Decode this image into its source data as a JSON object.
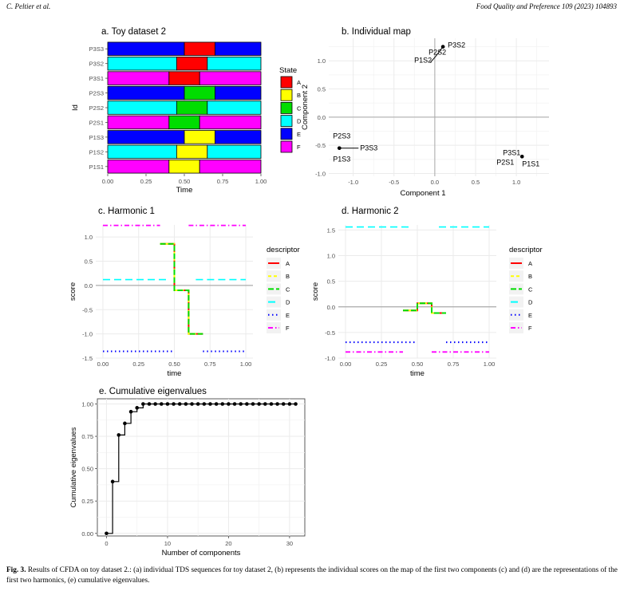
{
  "header": {
    "author": "C. Peltier et al.",
    "journal": "Food Quality and Preference 109 (2023) 104893"
  },
  "caption": {
    "label": "Fig. 3.",
    "text": "Results of CFDA on toy dataset 2.: (a) individual TDS sequences for toy dataset 2, (b) represents the individual scores on the map of the first two components (c) and (d) are the representations of the first two harmonics, (e) cumulative eigenvalues."
  },
  "colors": {
    "A": "#ff0000",
    "B": "#ffff00",
    "C": "#00dd00",
    "D": "#00ffff",
    "E": "#0000ff",
    "F": "#ff00ff"
  },
  "chart_data": [
    {
      "id": "a",
      "type": "bar",
      "title": "a. Toy dataset 2",
      "xlabel": "Time",
      "ylabel": "Id",
      "xlim": [
        0,
        1
      ],
      "xticks": [
        "0.00",
        "0.25",
        "0.50",
        "0.75",
        "1.00"
      ],
      "legend_title": "State",
      "legend": [
        "A",
        "B",
        "C",
        "D",
        "E",
        "F"
      ],
      "rows": [
        {
          "id": "P3S3",
          "segments": [
            [
              "E",
              0,
              0.5
            ],
            [
              "A",
              0.5,
              0.7
            ],
            [
              "E",
              0.7,
              1
            ]
          ]
        },
        {
          "id": "P3S2",
          "segments": [
            [
              "D",
              0,
              0.45
            ],
            [
              "A",
              0.45,
              0.65
            ],
            [
              "D",
              0.65,
              1
            ]
          ]
        },
        {
          "id": "P3S1",
          "segments": [
            [
              "F",
              0,
              0.4
            ],
            [
              "A",
              0.4,
              0.6
            ],
            [
              "F",
              0.6,
              1
            ]
          ]
        },
        {
          "id": "P2S3",
          "segments": [
            [
              "E",
              0,
              0.5
            ],
            [
              "C",
              0.5,
              0.7
            ],
            [
              "E",
              0.7,
              1
            ]
          ]
        },
        {
          "id": "P2S2",
          "segments": [
            [
              "D",
              0,
              0.45
            ],
            [
              "C",
              0.45,
              0.65
            ],
            [
              "D",
              0.65,
              1
            ]
          ]
        },
        {
          "id": "P2S1",
          "segments": [
            [
              "F",
              0,
              0.4
            ],
            [
              "C",
              0.4,
              0.6
            ],
            [
              "F",
              0.6,
              1
            ]
          ]
        },
        {
          "id": "P1S3",
          "segments": [
            [
              "E",
              0,
              0.5
            ],
            [
              "B",
              0.5,
              0.7
            ],
            [
              "E",
              0.7,
              1
            ]
          ]
        },
        {
          "id": "P1S2",
          "segments": [
            [
              "D",
              0,
              0.45
            ],
            [
              "B",
              0.45,
              0.65
            ],
            [
              "D",
              0.65,
              1
            ]
          ]
        },
        {
          "id": "P1S1",
          "segments": [
            [
              "F",
              0,
              0.4
            ],
            [
              "B",
              0.4,
              0.6
            ],
            [
              "F",
              0.6,
              1
            ]
          ]
        }
      ]
    },
    {
      "id": "b",
      "type": "scatter",
      "title": "b. Individual map",
      "xlabel": "Component 1",
      "ylabel": "Component 2",
      "xlim": [
        -1.3,
        1.4
      ],
      "ylim": [
        -1.05,
        1.4
      ],
      "xticks": [
        [
          "-1.0",
          -1
        ],
        [
          "-0.5",
          -0.5
        ],
        [
          "0.0",
          0
        ],
        [
          "0.5",
          0.5
        ],
        [
          "1.0",
          1
        ]
      ],
      "yticks": [
        [
          "1.0",
          1
        ],
        [
          "0.5",
          0.5
        ],
        [
          "0.0",
          0
        ],
        [
          "-0.5",
          -0.5
        ],
        [
          "-1.0",
          -1
        ]
      ],
      "points": [
        {
          "label": "P3S2",
          "x": 0.1,
          "y": 1.25
        },
        {
          "label": "P2S2",
          "x": 0.1,
          "y": 1.25
        },
        {
          "label": "P1S2",
          "x": 0.1,
          "y": 1.25
        },
        {
          "label": "P2S3",
          "x": -1.17,
          "y": -0.55
        },
        {
          "label": "P3S3",
          "x": -1.17,
          "y": -0.55
        },
        {
          "label": "P1S3",
          "x": -1.17,
          "y": -0.55
        },
        {
          "label": "P3S1",
          "x": 1.07,
          "y": -0.7
        },
        {
          "label": "P2S1",
          "x": 1.07,
          "y": -0.7
        },
        {
          "label": "P1S1",
          "x": 1.07,
          "y": -0.7
        }
      ]
    },
    {
      "id": "c",
      "type": "line",
      "title": "c. Harmonic 1",
      "xlabel": "time",
      "ylabel": "score",
      "xlim": [
        -0.05,
        1.05
      ],
      "ylim": [
        -1.5,
        1.25
      ],
      "xticks": [
        [
          "0.00",
          0
        ],
        [
          "0.25",
          0.25
        ],
        [
          "0.50",
          0.5
        ],
        [
          "0.75",
          0.75
        ],
        [
          "1.00",
          1
        ]
      ],
      "yticks": [
        [
          "1.0",
          1
        ],
        [
          "0.5",
          0.5
        ],
        [
          "0.0",
          0
        ],
        [
          "-0.5",
          -0.5
        ],
        [
          "-1.0",
          -1
        ],
        [
          "-1.5",
          -1.5
        ]
      ],
      "legend_title": "descriptor",
      "legend": [
        "A",
        "B",
        "C",
        "D",
        "E",
        "F"
      ],
      "series": [
        {
          "name": "A",
          "points": [
            [
              0.4,
              0.86
            ],
            [
              0.5,
              0.86
            ],
            [
              0.5,
              -0.1
            ],
            [
              0.6,
              -0.1
            ],
            [
              0.6,
              -1.0
            ],
            [
              0.7,
              -1.0
            ]
          ]
        },
        {
          "name": "B",
          "points": [
            [
              0.4,
              0.86
            ],
            [
              0.5,
              0.86
            ],
            [
              0.5,
              -0.1
            ],
            [
              0.6,
              -0.1
            ],
            [
              0.6,
              -1.0
            ],
            [
              0.7,
              -1.0
            ]
          ]
        },
        {
          "name": "C",
          "points": [
            [
              0.4,
              0.86
            ],
            [
              0.5,
              0.86
            ],
            [
              0.5,
              -0.1
            ],
            [
              0.6,
              -0.1
            ],
            [
              0.6,
              -1.0
            ],
            [
              0.7,
              -1.0
            ]
          ]
        },
        {
          "name": "D",
          "segments": [
            [
              [
                0,
                0.12
              ],
              [
                0.45,
                0.12
              ]
            ],
            [
              [
                0.65,
                0.12
              ],
              [
                1,
                0.12
              ]
            ]
          ]
        },
        {
          "name": "E",
          "segments": [
            [
              [
                0,
                -1.36
              ],
              [
                0.5,
                -1.36
              ]
            ],
            [
              [
                0.7,
                -1.36
              ],
              [
                1,
                -1.36
              ]
            ]
          ]
        },
        {
          "name": "F",
          "segments": [
            [
              [
                0,
                1.24
              ],
              [
                0.4,
                1.24
              ]
            ],
            [
              [
                0.6,
                1.24
              ],
              [
                1,
                1.24
              ]
            ]
          ]
        }
      ]
    },
    {
      "id": "d",
      "type": "line",
      "title": "d. Harmonic 2",
      "xlabel": "time",
      "ylabel": "score",
      "xlim": [
        -0.05,
        1.05
      ],
      "ylim": [
        -1.0,
        1.6
      ],
      "xticks": [
        [
          "0.00",
          0
        ],
        [
          "0.25",
          0.25
        ],
        [
          "0.50",
          0.5
        ],
        [
          "0.75",
          0.75
        ],
        [
          "1.00",
          1
        ]
      ],
      "yticks": [
        [
          "1.5",
          1.5
        ],
        [
          "1.0",
          1
        ],
        [
          "0.5",
          0.5
        ],
        [
          "0.0",
          0
        ],
        [
          "-0.5",
          -0.5
        ],
        [
          "-1.0",
          -1
        ]
      ],
      "legend_title": "descriptor",
      "legend": [
        "A",
        "B",
        "C",
        "D",
        "E",
        "F"
      ],
      "series": [
        {
          "name": "A",
          "points": [
            [
              0.4,
              -0.07
            ],
            [
              0.5,
              -0.07
            ],
            [
              0.5,
              0.07
            ],
            [
              0.6,
              0.07
            ],
            [
              0.6,
              -0.12
            ],
            [
              0.7,
              -0.12
            ]
          ]
        },
        {
          "name": "B",
          "points": [
            [
              0.4,
              -0.07
            ],
            [
              0.5,
              -0.07
            ],
            [
              0.5,
              0.07
            ],
            [
              0.6,
              0.07
            ],
            [
              0.6,
              -0.12
            ],
            [
              0.7,
              -0.12
            ]
          ]
        },
        {
          "name": "C",
          "points": [
            [
              0.4,
              -0.07
            ],
            [
              0.5,
              -0.07
            ],
            [
              0.5,
              0.07
            ],
            [
              0.6,
              0.07
            ],
            [
              0.6,
              -0.12
            ],
            [
              0.7,
              -0.12
            ]
          ]
        },
        {
          "name": "D",
          "segments": [
            [
              [
                0,
                1.56
              ],
              [
                0.45,
                1.56
              ]
            ],
            [
              [
                0.65,
                1.56
              ],
              [
                1,
                1.56
              ]
            ]
          ]
        },
        {
          "name": "E",
          "segments": [
            [
              [
                0,
                -0.69
              ],
              [
                0.5,
                -0.69
              ]
            ],
            [
              [
                0.7,
                -0.69
              ],
              [
                1,
                -0.69
              ]
            ]
          ]
        },
        {
          "name": "F",
          "segments": [
            [
              [
                0,
                -0.88
              ],
              [
                0.4,
                -0.88
              ]
            ],
            [
              [
                0.6,
                -0.88
              ],
              [
                1,
                -0.88
              ]
            ]
          ]
        }
      ]
    },
    {
      "id": "e",
      "type": "line",
      "title": "e. Cumulative eigenvalues",
      "xlabel": "Number of components",
      "ylabel": "Cumulative eigenvalues",
      "xlim": [
        -1.5,
        32.5
      ],
      "ylim": [
        -0.02,
        1.04
      ],
      "xticks": [
        [
          "0",
          0
        ],
        [
          "10",
          10
        ],
        [
          "20",
          20
        ],
        [
          "30",
          30
        ]
      ],
      "yticks": [
        [
          "1.00",
          1
        ],
        [
          "0.75",
          0.75
        ],
        [
          "0.50",
          0.5
        ],
        [
          "0.25",
          0.25
        ],
        [
          "0.00",
          0
        ]
      ],
      "x": [
        0,
        1,
        2,
        3,
        4,
        5,
        6,
        7,
        8,
        9,
        10,
        11,
        12,
        13,
        14,
        15,
        16,
        17,
        18,
        19,
        20,
        21,
        22,
        23,
        24,
        25,
        26,
        27,
        28,
        29,
        30,
        31
      ],
      "values": [
        0,
        0.4,
        0.76,
        0.85,
        0.94,
        0.97,
        1,
        1,
        1,
        1,
        1,
        1,
        1,
        1,
        1,
        1,
        1,
        1,
        1,
        1,
        1,
        1,
        1,
        1,
        1,
        1,
        1,
        1,
        1,
        1,
        1,
        1
      ]
    }
  ]
}
